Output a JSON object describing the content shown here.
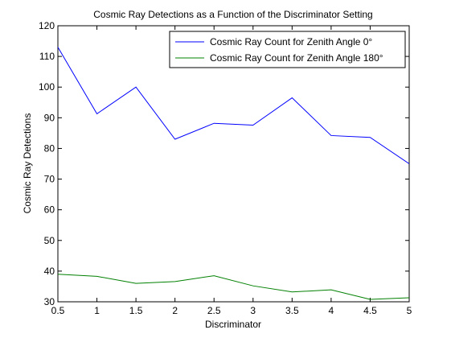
{
  "chart_data": {
    "type": "line",
    "title": "Cosmic Ray Detections as a Function of the Discriminator Setting",
    "xlabel": "Discriminator",
    "ylabel": "Cosmic Ray Detections",
    "xlim": [
      0.5,
      5
    ],
    "ylim": [
      30,
      120
    ],
    "xticks": [
      0.5,
      1,
      1.5,
      2,
      2.5,
      3,
      3.5,
      4,
      4.5,
      5
    ],
    "xtick_labels": [
      "0.5",
      "1",
      "1.5",
      "2",
      "2.5",
      "3",
      "3.5",
      "4",
      "4.5",
      "5"
    ],
    "yticks": [
      30,
      40,
      50,
      60,
      70,
      80,
      90,
      100,
      110,
      120
    ],
    "ytick_labels": [
      "30",
      "40",
      "50",
      "60",
      "70",
      "80",
      "90",
      "100",
      "110",
      "120"
    ],
    "grid": false,
    "legend_position": "top-right",
    "x": [
      0.5,
      1,
      1.5,
      2,
      2.5,
      3,
      3.5,
      4,
      4.5,
      5
    ],
    "series": [
      {
        "name": "Cosmic Ray Count for Zenith Angle 0°",
        "color": "#0000ff",
        "values": [
          113,
          91.3,
          100,
          83,
          88.2,
          87.6,
          96.5,
          84.2,
          83.6,
          75
        ]
      },
      {
        "name": "Cosmic Ray Count for Zenith Angle 180°",
        "color": "#008000",
        "values": [
          39,
          38.3,
          36,
          36.6,
          38.5,
          35.2,
          33.2,
          33.9,
          30.8,
          31.3
        ]
      }
    ]
  }
}
